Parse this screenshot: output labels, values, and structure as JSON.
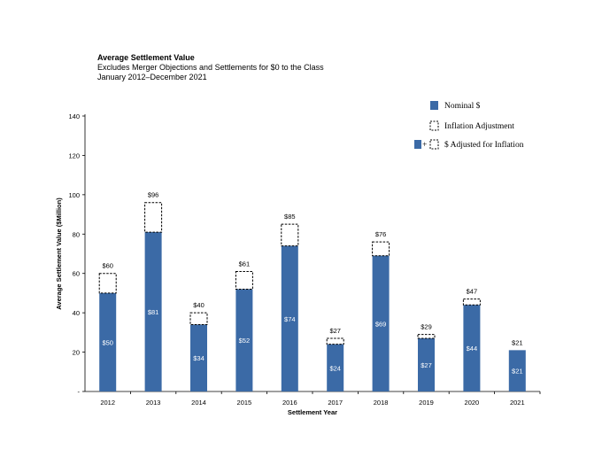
{
  "chart_data": {
    "type": "bar",
    "title": "Average Settlement Value",
    "subtitle_lines": [
      "Excludes Merger Objections and Settlements for $0 to the Class",
      "January 2012–December 2021"
    ],
    "xlabel": "Settlement Year",
    "ylabel": "Average Settlement Value ($Million)",
    "ylim": [
      0,
      140
    ],
    "yticks": [
      "-",
      "20",
      "40",
      "60",
      "80",
      "100",
      "120",
      "140"
    ],
    "categories": [
      "2012",
      "2013",
      "2014",
      "2015",
      "2016",
      "2017",
      "2018",
      "2019",
      "2020",
      "2021"
    ],
    "series": [
      {
        "name": "Nominal $",
        "values": [
          50,
          81,
          34,
          52,
          74,
          24,
          69,
          27,
          44,
          21
        ]
      },
      {
        "name": "Inflation Adjustment",
        "values": [
          10,
          15,
          6,
          9,
          11,
          3,
          7,
          2,
          3,
          0
        ]
      }
    ],
    "inner_labels": [
      "$50",
      "$81",
      "$34",
      "$52",
      "$74",
      "$24",
      "$69",
      "$27",
      "$44",
      "$21"
    ],
    "top_labels": [
      "$60",
      "$96",
      "$40",
      "$61",
      "$85",
      "$27",
      "$76",
      "$29",
      "$47",
      "$21"
    ],
    "legend": {
      "placement": "top-right",
      "items": [
        "Nominal $",
        "Inflation Adjustment",
        "$ Adjusted for Inflation"
      ],
      "plus_sign": "+"
    },
    "grid": false,
    "colors": {
      "nominal": "#3B6AA6",
      "adjustment_border": "#000000"
    }
  }
}
